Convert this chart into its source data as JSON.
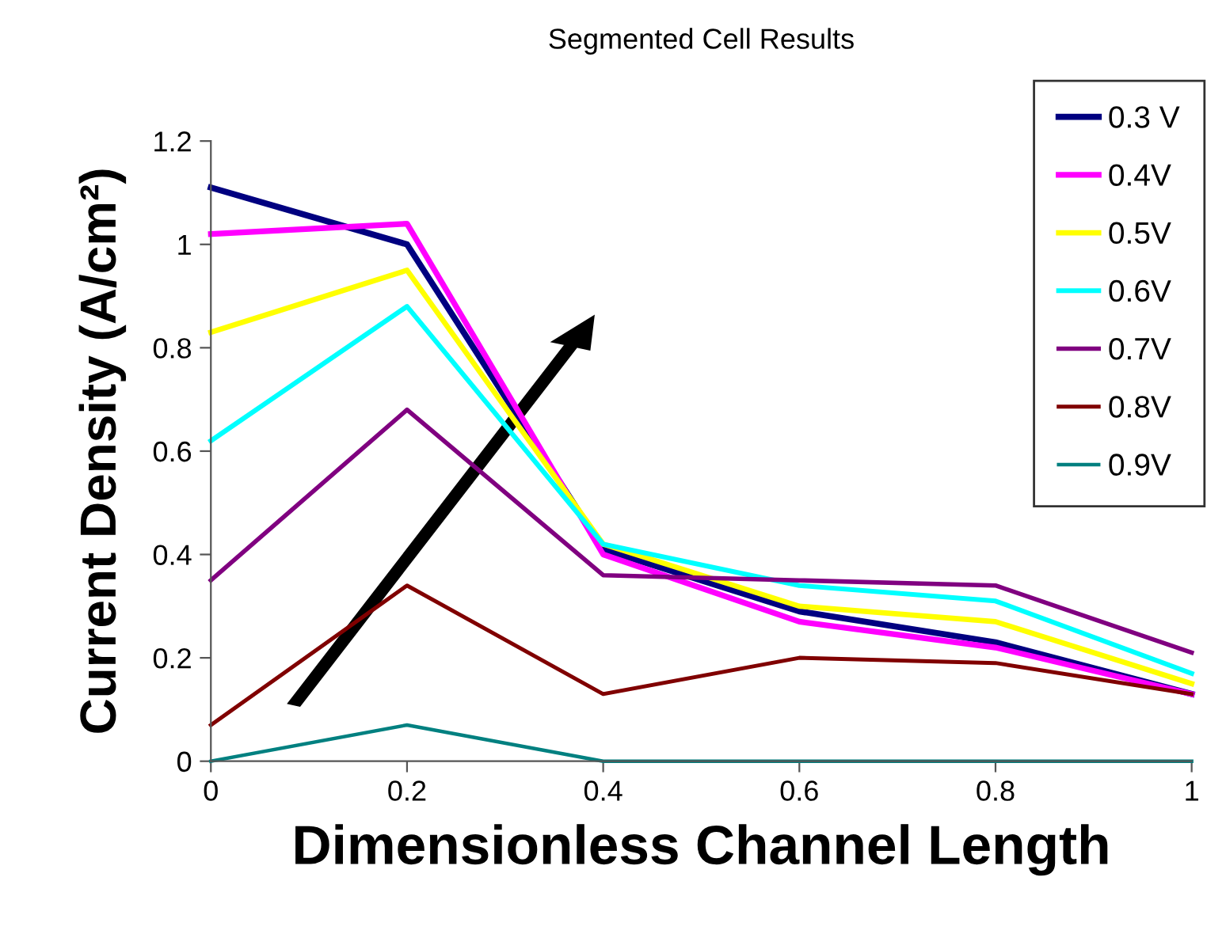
{
  "chart_data": {
    "type": "line",
    "title": "Segmented Cell Results",
    "xlabel": "Dimensionless Channel Length",
    "ylabel": "Current Density (A/cm²)",
    "x": [
      0,
      0.2,
      0.4,
      0.6,
      0.8,
      1
    ],
    "series": [
      {
        "name": "0.3 V",
        "color": "#000080",
        "values": [
          1.11,
          1.0,
          0.41,
          0.29,
          0.23,
          0.13
        ]
      },
      {
        "name": "0.4V",
        "color": "#ff00ff",
        "values": [
          1.02,
          1.04,
          0.4,
          0.27,
          0.22,
          0.13
        ]
      },
      {
        "name": "0.5V",
        "color": "#ffff00",
        "values": [
          0.83,
          0.95,
          0.42,
          0.3,
          0.27,
          0.15
        ]
      },
      {
        "name": "0.6V",
        "color": "#00ffff",
        "values": [
          0.62,
          0.88,
          0.42,
          0.34,
          0.31,
          0.17
        ]
      },
      {
        "name": "0.7V",
        "color": "#800080",
        "values": [
          0.35,
          0.68,
          0.36,
          0.35,
          0.34,
          0.21
        ]
      },
      {
        "name": "0.8V",
        "color": "#800000",
        "values": [
          0.07,
          0.34,
          0.13,
          0.2,
          0.19,
          0.13
        ]
      },
      {
        "name": "0.9V",
        "color": "#008080",
        "values": [
          0,
          0.07,
          0,
          0,
          0,
          0
        ]
      }
    ],
    "xlim": [
      0,
      1
    ],
    "xticks": [
      0,
      0.2,
      0.4,
      0.6,
      0.8,
      1
    ],
    "ylim": [
      0,
      1.2
    ],
    "yticks": [
      0,
      0.2,
      0.4,
      0.6,
      0.8,
      1,
      1.2
    ],
    "grid": false,
    "legend": "top right",
    "marker": "none",
    "line_style": "solid"
  }
}
